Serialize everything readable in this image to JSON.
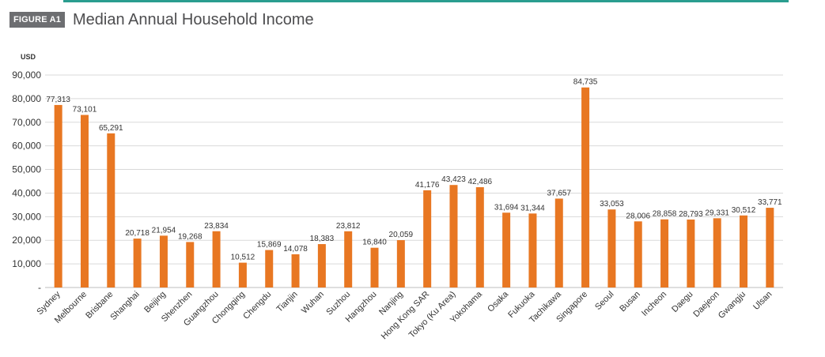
{
  "header": {
    "figure_label": "FIGURE A1",
    "title": "Median Annual Household Income",
    "accent_color": "#2a9d8f"
  },
  "chart_data": {
    "type": "bar",
    "title": "Median Annual Household Income",
    "ylabel": "USD",
    "xlabel": "",
    "ylim": [
      0,
      90000
    ],
    "yticks": [
      0,
      10000,
      20000,
      30000,
      40000,
      50000,
      60000,
      70000,
      80000,
      90000
    ],
    "ytick_labels": [
      "-",
      "10,000",
      "20,000",
      "30,000",
      "40,000",
      "50,000",
      "60,000",
      "70,000",
      "80,000",
      "90,000"
    ],
    "grid": true,
    "bar_color": "#e87722",
    "categories": [
      "Sydney",
      "Melbourne",
      "Brisbane",
      "Shanghai",
      "Beijing",
      "Shenzhen",
      "Guangzhou",
      "Chongqing",
      "Chengdu",
      "Tianjin",
      "Wuhan",
      "Suzhou",
      "Hangzhou",
      "Nanjing",
      "Hong Kong SAR",
      "Tokyo (Ku Area)",
      "Yokohama",
      "Osaka",
      "Fukuoka",
      "Tachikawa",
      "Singapore",
      "Seoul",
      "Busan",
      "Incheon",
      "Daegu",
      "Daejeon",
      "Gwangju",
      "Ulsan"
    ],
    "values": [
      77313,
      73101,
      65291,
      20718,
      21954,
      19268,
      23834,
      10512,
      15869,
      14078,
      18383,
      23812,
      16840,
      20059,
      41176,
      43423,
      42486,
      31694,
      31344,
      37657,
      84735,
      33053,
      28006,
      28858,
      28793,
      29331,
      30512,
      33771
    ],
    "value_labels": [
      "77,313",
      "73,101",
      "65,291",
      "20,718",
      "21,954",
      "19,268",
      "23,834",
      "10,512",
      "15,869",
      "14,078",
      "18,383",
      "23,812",
      "16,840",
      "20,059",
      "41,176",
      "43,423",
      "42,486",
      "31,694",
      "31,344",
      "37,657",
      "84,735",
      "33,053",
      "28,006",
      "28,858",
      "28,793",
      "29,331",
      "30,512",
      "33,771"
    ]
  }
}
